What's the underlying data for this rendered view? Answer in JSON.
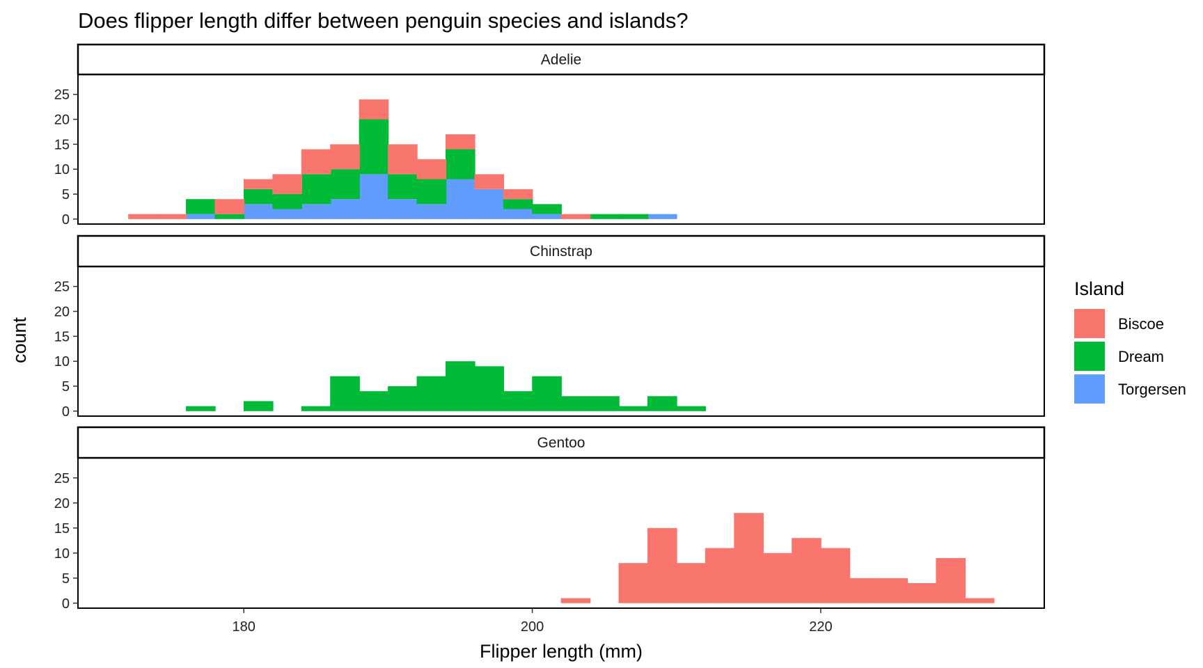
{
  "chart_data": {
    "type": "bar",
    "subtype": "faceted stacked histogram",
    "title": "Does flipper length differ between penguin species and islands?",
    "xlabel": "Flipper length (mm)",
    "ylabel": "count",
    "xlim": [
      168.5,
      235.5
    ],
    "ylim": [
      -1,
      29
    ],
    "x_ticks": [
      180,
      200,
      220
    ],
    "y_ticks": [
      0,
      5,
      10,
      15,
      20,
      25
    ],
    "bins": [
      173,
      175,
      177,
      179,
      181,
      183,
      185,
      187,
      189,
      191,
      193,
      195,
      197,
      199,
      201,
      203,
      205,
      207,
      209,
      211,
      213,
      215,
      217,
      219,
      221,
      223,
      225,
      227,
      229,
      231,
      233
    ],
    "bin_width": 2.03,
    "grid": false,
    "legend": {
      "title": "Island",
      "placement": "right",
      "items": [
        {
          "name": "Biscoe",
          "color": "#F8766D"
        },
        {
          "name": "Dream",
          "color": "#00BA38"
        },
        {
          "name": "Torgersen",
          "color": "#619CFF"
        }
      ]
    },
    "facets": [
      {
        "label": "Adelie",
        "series": [
          {
            "name": "Torgersen",
            "values": [
              0,
              0,
              1,
              0,
              3,
              2,
              3,
              4,
              9,
              4,
              3,
              8,
              6,
              2,
              1,
              0,
              0,
              0,
              1,
              0,
              0,
              0,
              0,
              0,
              0,
              0,
              0,
              0,
              0,
              0,
              0
            ]
          },
          {
            "name": "Dream",
            "values": [
              0,
              0,
              3,
              1,
              3,
              3,
              6,
              6,
              11,
              5,
              5,
              6,
              0,
              2,
              2,
              0,
              1,
              1,
              0,
              0,
              0,
              0,
              0,
              0,
              0,
              0,
              0,
              0,
              0,
              0,
              0
            ]
          },
          {
            "name": "Biscoe",
            "values": [
              1,
              1,
              0,
              3,
              2,
              4,
              5,
              5,
              4,
              6,
              4,
              3,
              3,
              2,
              0,
              1,
              0,
              0,
              0,
              0,
              0,
              0,
              0,
              0,
              0,
              0,
              0,
              0,
              0,
              0,
              0
            ]
          }
        ]
      },
      {
        "label": "Chinstrap",
        "series": [
          {
            "name": "Torgersen",
            "values": [
              0,
              0,
              0,
              0,
              0,
              0,
              0,
              0,
              0,
              0,
              0,
              0,
              0,
              0,
              0,
              0,
              0,
              0,
              0,
              0,
              0,
              0,
              0,
              0,
              0,
              0,
              0,
              0,
              0,
              0,
              0
            ]
          },
          {
            "name": "Dream",
            "values": [
              0,
              0,
              1,
              0,
              2,
              0,
              1,
              7,
              4,
              5,
              7,
              10,
              9,
              4,
              7,
              3,
              3,
              1,
              3,
              1,
              0,
              0,
              0,
              0,
              0,
              0,
              0,
              0,
              0,
              0,
              0
            ]
          },
          {
            "name": "Biscoe",
            "values": [
              0,
              0,
              0,
              0,
              0,
              0,
              0,
              0,
              0,
              0,
              0,
              0,
              0,
              0,
              0,
              0,
              0,
              0,
              0,
              0,
              0,
              0,
              0,
              0,
              0,
              0,
              0,
              0,
              0,
              0,
              0
            ]
          }
        ]
      },
      {
        "label": "Gentoo",
        "series": [
          {
            "name": "Torgersen",
            "values": [
              0,
              0,
              0,
              0,
              0,
              0,
              0,
              0,
              0,
              0,
              0,
              0,
              0,
              0,
              0,
              0,
              0,
              0,
              0,
              0,
              0,
              0,
              0,
              0,
              0,
              0,
              0,
              0,
              0,
              0,
              0
            ]
          },
          {
            "name": "Dream",
            "values": [
              0,
              0,
              0,
              0,
              0,
              0,
              0,
              0,
              0,
              0,
              0,
              0,
              0,
              0,
              0,
              0,
              0,
              0,
              0,
              0,
              0,
              0,
              0,
              0,
              0,
              0,
              0,
              0,
              0,
              0,
              0
            ]
          },
          {
            "name": "Biscoe",
            "values": [
              0,
              0,
              0,
              0,
              0,
              0,
              0,
              0,
              0,
              0,
              0,
              0,
              0,
              0,
              0,
              1,
              0,
              8,
              15,
              8,
              11,
              18,
              10,
              13,
              11,
              5,
              5,
              4,
              9,
              1,
              0
            ]
          }
        ]
      }
    ]
  }
}
